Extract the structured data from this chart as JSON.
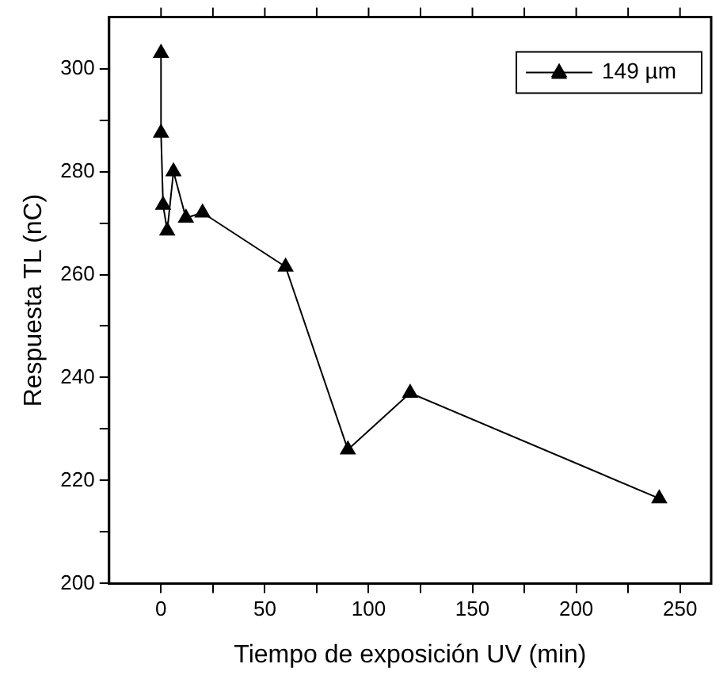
{
  "chart_data": {
    "type": "line",
    "xlabel": "Tiempo de exposición UV (min)",
    "ylabel": "Respuesta TL (nC)",
    "x": [
      0,
      0,
      1,
      3,
      6,
      12,
      20,
      60,
      90,
      120,
      240
    ],
    "series": [
      {
        "name": "149 µm",
        "color": "#000000",
        "values": [
          303,
          287.5,
          273.5,
          268.5,
          280,
          271,
          272,
          261.5,
          226,
          237,
          216.5
        ]
      }
    ],
    "xlim": [
      -25,
      265
    ],
    "xticks": [
      0,
      {
        "value": 25,
        "label": null
      },
      50,
      {
        "value": 75,
        "label": null
      },
      100,
      {
        "value": 125,
        "label": null
      },
      150,
      {
        "value": 175,
        "label": null
      },
      200,
      {
        "value": 225,
        "label": null
      },
      250
    ],
    "ylim": [
      200,
      310
    ],
    "yticks": [
      200,
      {
        "value": 210,
        "label": null
      },
      220,
      {
        "value": 230,
        "label": null
      },
      240,
      {
        "value": 250,
        "label": null
      },
      260,
      {
        "value": 270,
        "label": null
      },
      280,
      {
        "value": 290,
        "label": null
      },
      300
    ],
    "grid": false,
    "legend": "top right",
    "marker": "triangle",
    "line_style": "solid"
  }
}
